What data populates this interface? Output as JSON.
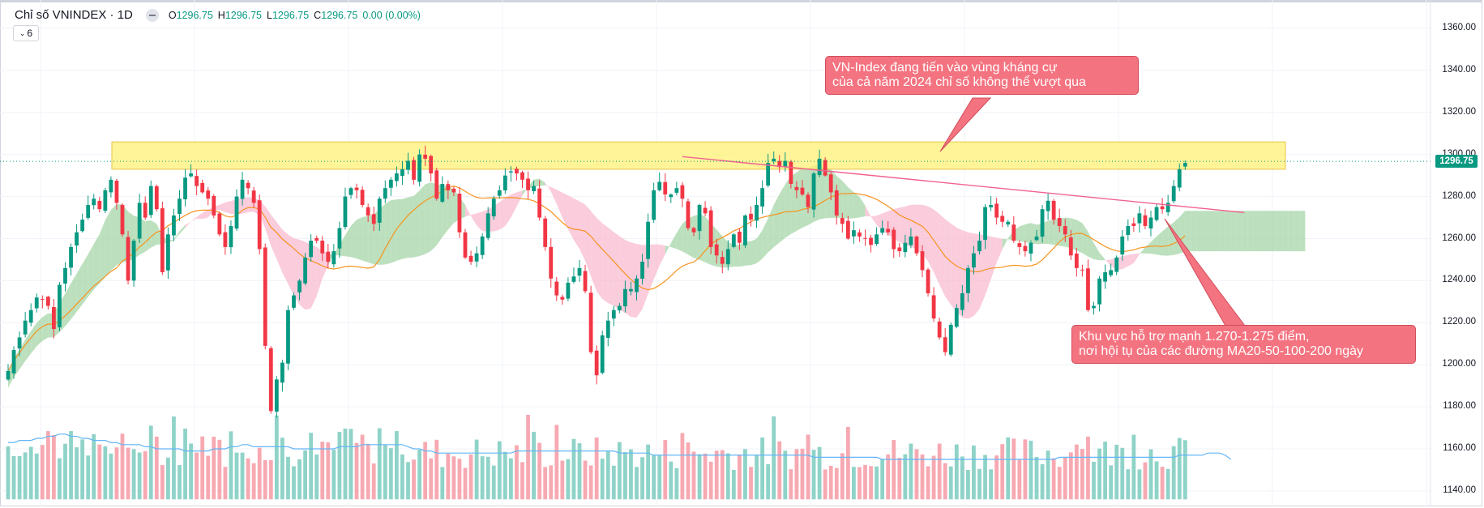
{
  "header": {
    "title": "Chỉ số VNINDEX · 1D",
    "ohlc": [
      {
        "k": "O",
        "v": "1296.75"
      },
      {
        "k": "H",
        "v": "1296.75"
      },
      {
        "k": "L",
        "v": "1296.75"
      },
      {
        "k": "C",
        "v": "1296.75"
      }
    ],
    "change": "0.00 (0.00%)",
    "indicator_count": "6",
    "chevron_icon": "chevron-down-icon"
  },
  "callouts": {
    "resistance": [
      "VN-Index đang tiến vào vùng kháng cự",
      "của cả năm 2024 chỉ số không thể vượt qua"
    ],
    "support": [
      "Khu vực hỗ trợ mạnh 1.270-1.275 điểm,",
      "nơi hội tụ của các đường MA20-50-100-200 ngày"
    ]
  },
  "colors": {
    "up": "#089981",
    "down": "#f23645",
    "cloud_bull": "#a5d6a7",
    "cloud_bear": "#f8bbd0",
    "ma": "#f7931e",
    "vol_ma": "#64b5f6",
    "resistance_zone": "#fff176",
    "trendline": "#f06292",
    "callout_bg": "#f47380"
  },
  "chart_data": {
    "type": "candlestick",
    "symbol": "VNINDEX",
    "interval": "1D",
    "y_axis": {
      "ticks": [
        "1360.00",
        "1340.00",
        "1320.00",
        "1300.00",
        "1280.00",
        "1260.00",
        "1240.00",
        "1220.00",
        "1200.00",
        "1180.00",
        "1160.00",
        "1140.00"
      ],
      "range": [
        1135,
        1365
      ]
    },
    "last_price": "1296.75",
    "resistance_zone": [
      1293,
      1306
    ],
    "trendline": [
      {
        "bar": 118,
        "price": 1299
      },
      {
        "bar": 205,
        "price": 1272
      }
    ],
    "close": [
      1197,
      1207,
      1213,
      1221,
      1226,
      1232,
      1231,
      1228,
      1217,
      1238,
      1246,
      1256,
      1263,
      1269,
      1276,
      1279,
      1274,
      1283,
      1288,
      1277,
      1262,
      1240,
      1259,
      1277,
      1270,
      1285,
      1274,
      1244,
      1262,
      1271,
      1279,
      1289,
      1291,
      1285,
      1282,
      1279,
      1271,
      1262,
      1256,
      1266,
      1280,
      1288,
      1284,
      1277,
      1255,
      1209,
      1178,
      1193,
      1201,
      1226,
      1233,
      1240,
      1251,
      1259,
      1259,
      1253,
      1249,
      1254,
      1265,
      1280,
      1284,
      1283,
      1276,
      1271,
      1267,
      1279,
      1284,
      1288,
      1291,
      1293,
      1297,
      1288,
      1300,
      1298,
      1291,
      1279,
      1286,
      1283,
      1282,
      1263,
      1251,
      1249,
      1253,
      1261,
      1272,
      1279,
      1283,
      1290,
      1292,
      1291,
      1288,
      1283,
      1285,
      1270,
      1256,
      1241,
      1233,
      1231,
      1239,
      1242,
      1246,
      1235,
      1206,
      1195,
      1214,
      1221,
      1226,
      1228,
      1236,
      1236,
      1241,
      1249,
      1268,
      1283,
      1287,
      1281,
      1281,
      1284,
      1279,
      1265,
      1263,
      1276,
      1272,
      1256,
      1252,
      1248,
      1255,
      1262,
      1258,
      1271,
      1269,
      1276,
      1284,
      1296,
      1298,
      1294,
      1297,
      1286,
      1283,
      1281,
      1275,
      1291,
      1298,
      1290,
      1282,
      1271,
      1267,
      1260,
      1264,
      1261,
      1260,
      1257,
      1262,
      1265,
      1263,
      1255,
      1254,
      1258,
      1261,
      1253,
      1245,
      1234,
      1222,
      1213,
      1206,
      1219,
      1227,
      1234,
      1246,
      1253,
      1259,
      1275,
      1276,
      1270,
      1268,
      1268,
      1259,
      1256,
      1254,
      1258,
      1261,
      1274,
      1278,
      1269,
      1266,
      1262,
      1252,
      1246,
      1245,
      1226,
      1228,
      1241,
      1244,
      1245,
      1251,
      1261,
      1266,
      1266,
      1272,
      1266,
      1270,
      1275,
      1274,
      1277,
      1285,
      1293,
      1296
    ],
    "volume_ma": [
      1163,
      1163,
      1164,
      1164,
      1164,
      1165,
      1165,
      1166,
      1166,
      1167,
      1167,
      1166,
      1166,
      1165,
      1165,
      1164,
      1164,
      1164,
      1163,
      1163,
      1162,
      1162,
      1162,
      1162,
      1161,
      1161,
      1160,
      1160,
      1160,
      1160,
      1160,
      1159,
      1159,
      1159,
      1159,
      1159,
      1160,
      1160,
      1160,
      1161,
      1161,
      1162,
      1162,
      1161,
      1161,
      1161,
      1161,
      1161,
      1161,
      1161,
      1160,
      1160,
      1160,
      1160,
      1160,
      1160,
      1160,
      1160,
      1161,
      1161,
      1161,
      1161,
      1162,
      1162,
      1162,
      1162,
      1162,
      1162,
      1162,
      1162,
      1161,
      1160,
      1160,
      1159,
      1159,
      1158,
      1158,
      1158,
      1158,
      1158,
      1158,
      1158,
      1158,
      1158,
      1158,
      1158,
      1158,
      1158,
      1158,
      1159,
      1159,
      1159,
      1159,
      1159,
      1159,
      1159,
      1159,
      1159,
      1159,
      1159,
      1159,
      1159,
      1159,
      1159,
      1159,
      1159,
      1159,
      1158,
      1158,
      1158,
      1158,
      1158,
      1158,
      1157,
      1157,
      1157,
      1157,
      1157,
      1157,
      1157,
      1157,
      1157,
      1157,
      1157,
      1157,
      1157,
      1157,
      1157,
      1157,
      1157,
      1157,
      1157,
      1157,
      1157,
      1157,
      1157,
      1157,
      1157,
      1157,
      1157,
      1157,
      1156,
      1156,
      1156,
      1156,
      1156,
      1156,
      1156,
      1156,
      1156,
      1156,
      1156,
      1156,
      1155,
      1155,
      1155,
      1155,
      1155,
      1155,
      1155,
      1155,
      1155,
      1155,
      1155,
      1155,
      1155,
      1155,
      1155,
      1155,
      1155,
      1155,
      1155,
      1155,
      1155,
      1155,
      1155,
      1155,
      1155,
      1155,
      1155,
      1155,
      1155,
      1155,
      1155,
      1156,
      1156,
      1156,
      1156,
      1156,
      1156,
      1156,
      1156,
      1156,
      1156,
      1156,
      1156,
      1156,
      1156,
      1156,
      1156,
      1156,
      1156,
      1156,
      1156,
      1156,
      1157,
      1157,
      1157,
      1157,
      1157,
      1158,
      1158,
      1158,
      1157,
      1155
    ]
  }
}
